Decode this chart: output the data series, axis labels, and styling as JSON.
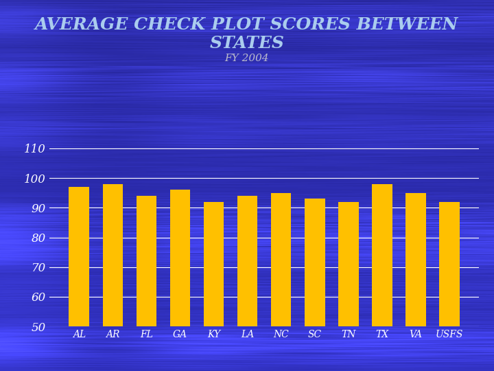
{
  "title_line1": "AVERAGE CHECK PLOT SCORES BETWEEN STATES",
  "title_line2": "FY 2004",
  "categories": [
    "AL",
    "AR",
    "FL",
    "GA",
    "KY",
    "LA",
    "NC",
    "SC",
    "TN",
    "TX",
    "VA",
    "USFS"
  ],
  "values": [
    97,
    98,
    94,
    96,
    92,
    94,
    95,
    93,
    92,
    98,
    95,
    92
  ],
  "bar_color": "#FFC000",
  "background_color": "#3030BB",
  "plot_bg_color": "#3030BB",
  "grid_color": "#FFFFFF",
  "text_color": "#FFFFFF",
  "title_color": "#AACCEE",
  "subtitle_color": "#BBBBCC",
  "ylim": [
    50,
    115
  ],
  "yticks": [
    50,
    60,
    70,
    80,
    90,
    100,
    110
  ],
  "title_fontsize": 18,
  "subtitle_fontsize": 11,
  "tick_fontsize": 12,
  "xlabel_fontsize": 10
}
